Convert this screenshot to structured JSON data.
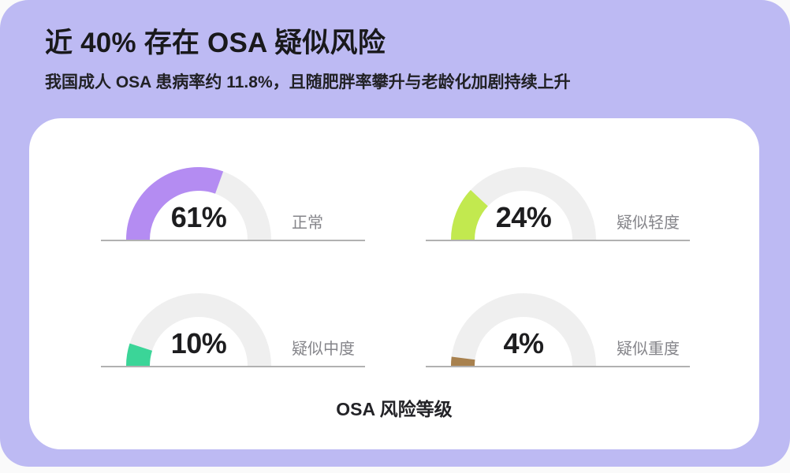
{
  "header": {
    "title": "近 40% 存在 OSA 疑似风险",
    "subtitle": "我国成人 OSA 患病率约 11.8%，且随肥胖率攀升与老龄化加剧持续上升"
  },
  "chart_data": {
    "type": "gauge",
    "title": "OSA 风险等级",
    "unit": "%",
    "range": [
      0,
      100
    ],
    "track_color": "#efefef",
    "baseline_color": "#b1b1b1",
    "gauges": [
      {
        "label": "正常",
        "value": 61,
        "value_label": "61%",
        "color": "#b48cf2"
      },
      {
        "label": "疑似轻度",
        "value": 24,
        "value_label": "24%",
        "color": "#c2e94f"
      },
      {
        "label": "疑似中度",
        "value": 10,
        "value_label": "10%",
        "color": "#3bd598"
      },
      {
        "label": "疑似重度",
        "value": 4,
        "value_label": "4%",
        "color": "#a8814e"
      }
    ]
  },
  "colors": {
    "panel_background": "#bdbaf3",
    "card_background": "#ffffff",
    "page_background": "#fafafa"
  }
}
